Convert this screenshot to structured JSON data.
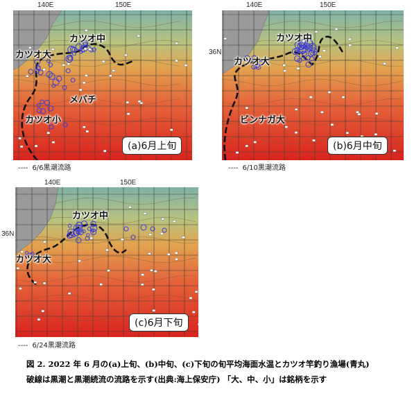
{
  "panels": [
    {
      "id": "a",
      "lon_labels": [
        "140E",
        "150E"
      ],
      "lat_label": "",
      "panel_label": "(a)6月上旬",
      "fishery_labels": [
        "カツオ大",
        "カツオ中",
        "メバチ",
        "カツオ小"
      ],
      "legend": {
        "dash": "----",
        "text": "6/6黒潮流路"
      }
    },
    {
      "id": "b",
      "lon_labels": [
        "140E",
        "150E"
      ],
      "lat_label": "36N",
      "panel_label": "(b)6月中旬",
      "fishery_labels": [
        "カツオ大",
        "カツオ中",
        "ビンナガ大"
      ],
      "legend": {
        "dash": "----",
        "text": "6/10黒潮流路"
      }
    },
    {
      "id": "c",
      "lon_labels": [
        "140E",
        "150E"
      ],
      "lat_label": "36N",
      "panel_label": "(c)6月下旬",
      "fishery_labels": [
        "カツオ大",
        "カツオ中"
      ],
      "legend": {
        "dash": "----",
        "text": "6/24黒潮流路"
      }
    }
  ],
  "caption": {
    "line1": "図 2. 2022 年 6 月の(a)上旬、(b)中旬、(c)下旬の旬平均海面水温とカツオ竿釣り漁場(青丸)",
    "line2": "破線は黒潮と黒潮続流の流路を示す(出典:海上保安庁) 「大、中、小」は銘柄を示す"
  },
  "colors": {
    "land": "#9a9a9a",
    "grid": "#3a3a3a",
    "fishing_circle": "#3b3bd6",
    "kuroshio_path": "#111111",
    "sst_north": "#7fb2a6",
    "sst_mid": "#e2a450",
    "sst_south": "#d9231e"
  }
}
